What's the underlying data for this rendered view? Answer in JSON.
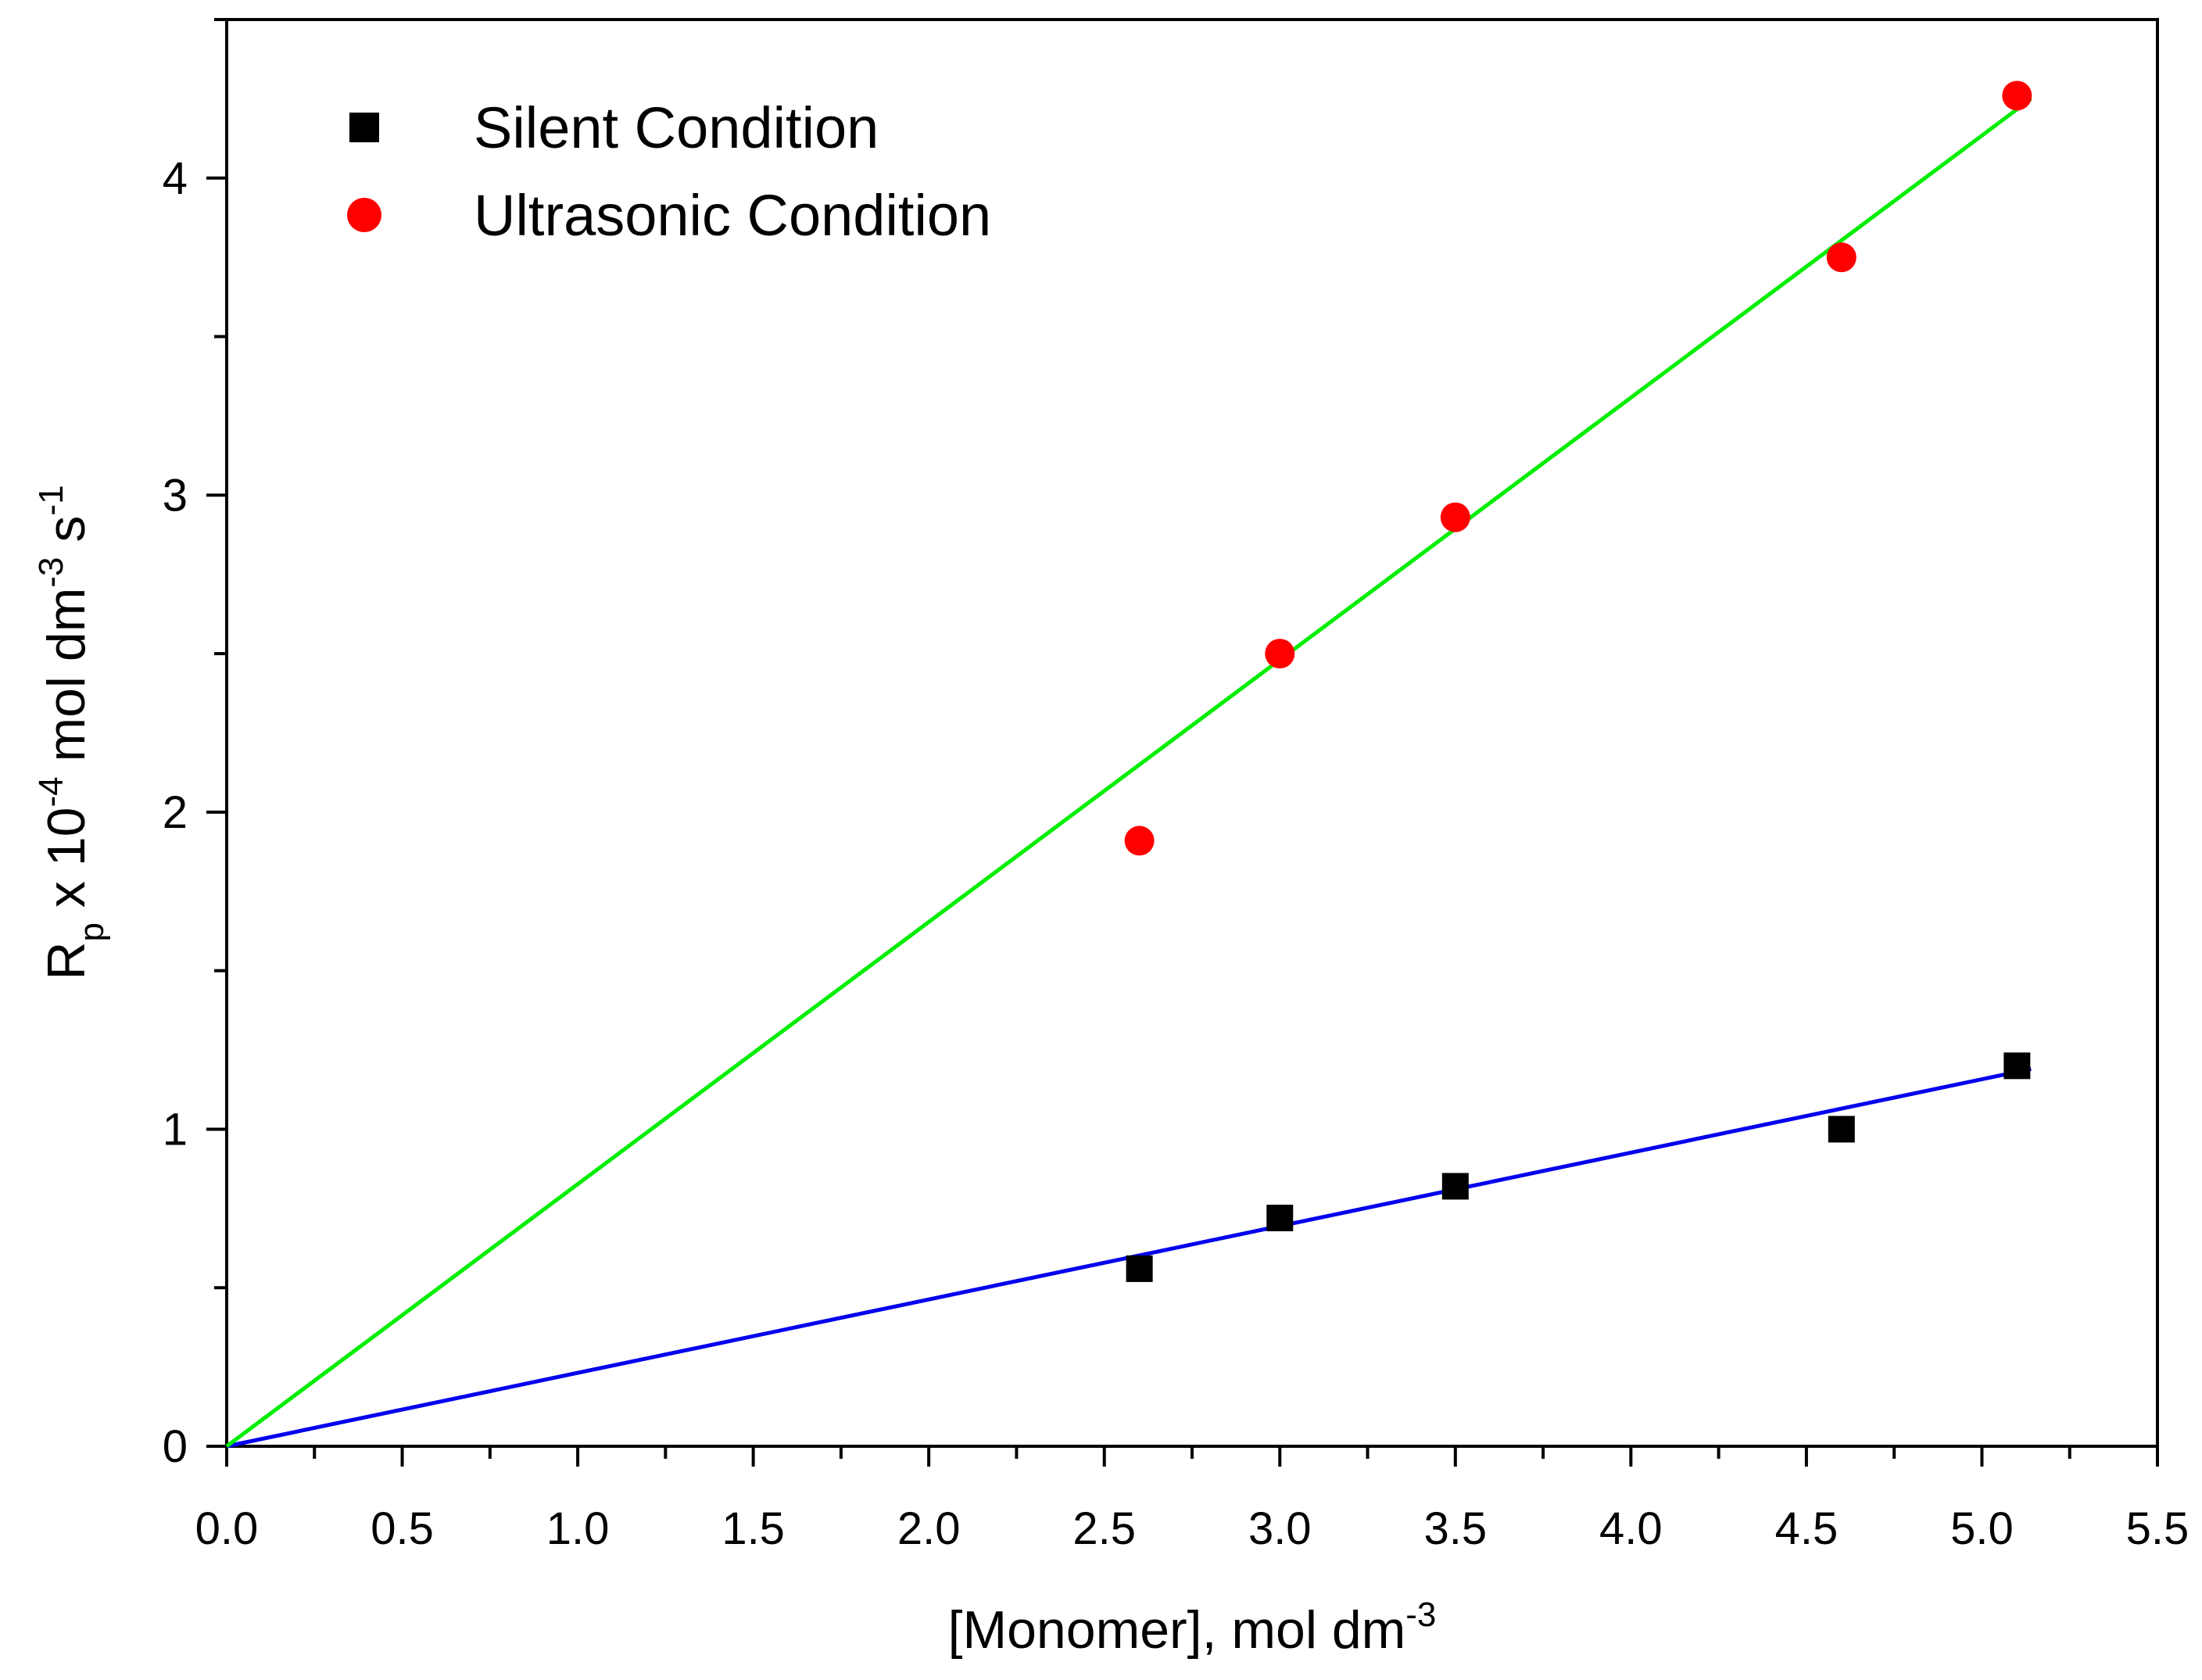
{
  "chart_data": {
    "type": "scatter",
    "title": "",
    "xlabel": {
      "main": "[Monomer], mol dm",
      "sup": "-3"
    },
    "ylabel": {
      "r": "R",
      "r_sub": "p",
      "mid": " x 10",
      "exp1": "-4",
      "unit1": " mol dm",
      "exp2": "-3",
      "unit2": " s",
      "exp3": "-1"
    },
    "xlim": [
      0.0,
      5.5
    ],
    "ylim": [
      0,
      4.5
    ],
    "x_ticks": [
      0.0,
      0.5,
      1.0,
      1.5,
      2.0,
      2.5,
      3.0,
      3.5,
      4.0,
      4.5,
      5.0,
      5.5
    ],
    "x_tick_labels": [
      "0.0",
      "0.5",
      "1.0",
      "1.5",
      "2.0",
      "2.5",
      "3.0",
      "3.5",
      "4.0",
      "4.5",
      "5.0",
      "5.5"
    ],
    "y_ticks": [
      0,
      1,
      2,
      3,
      4
    ],
    "y_tick_labels": [
      "0",
      "1",
      "2",
      "3",
      "4"
    ],
    "grid": false,
    "legend_position": "top-left",
    "series": [
      {
        "name": "Silent Condition",
        "marker": "square",
        "color": "#000000",
        "x": [
          2.6,
          3.0,
          3.5,
          4.6,
          5.1
        ],
        "y": [
          0.56,
          0.72,
          0.82,
          1.0,
          1.2
        ],
        "fit": {
          "color": "#0000ee",
          "x": [
            0.0,
            5.14
          ],
          "y": [
            0.0,
            1.19
          ]
        }
      },
      {
        "name": "Ultrasonic Condition",
        "marker": "circle",
        "color": "#ff0000",
        "x": [
          2.6,
          3.0,
          3.5,
          4.6,
          5.1
        ],
        "y": [
          1.91,
          2.5,
          2.93,
          3.75,
          4.26
        ],
        "fit": {
          "color": "#00ee00",
          "x": [
            0.0,
            5.14
          ],
          "y": [
            0.0,
            4.25
          ]
        }
      }
    ]
  }
}
